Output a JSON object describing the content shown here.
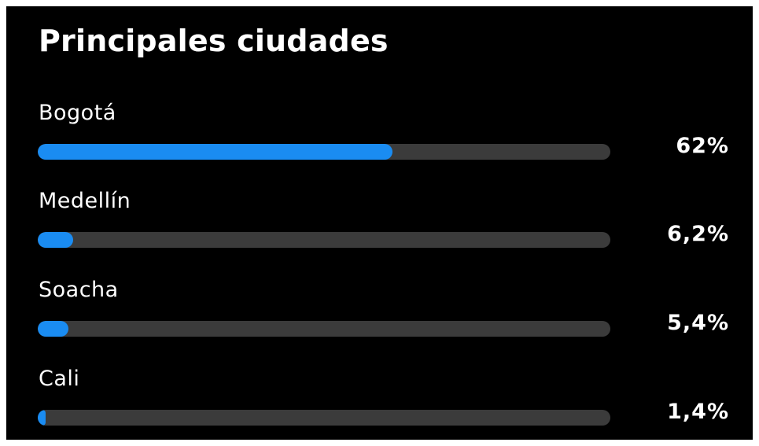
{
  "title": "Principales ciudades",
  "accent_color": "#1a8cf2",
  "track_color": "#3b3b3b",
  "cities": [
    {
      "name": "Bogotá",
      "percent_label": "62%",
      "fill_fraction": 0.62
    },
    {
      "name": "Medellín",
      "percent_label": "6,2%",
      "fill_fraction": 0.062
    },
    {
      "name": "Soacha",
      "percent_label": "5,4%",
      "fill_fraction": 0.054
    },
    {
      "name": "Cali",
      "percent_label": "1,4%",
      "fill_fraction": 0.014
    }
  ]
}
